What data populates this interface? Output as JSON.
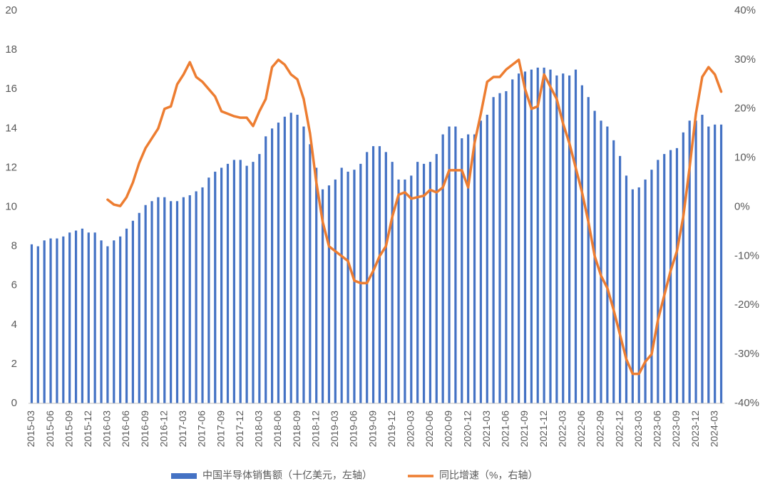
{
  "chart_data": {
    "type": "bar-line",
    "categories": [
      "2015-03",
      null,
      null,
      "2015-06",
      null,
      null,
      "2015-09",
      null,
      null,
      "2015-12",
      null,
      null,
      "2016-03",
      null,
      null,
      "2016-06",
      null,
      null,
      "2016-09",
      null,
      null,
      "2016-12",
      null,
      null,
      "2017-03",
      null,
      null,
      "2017-06",
      null,
      null,
      "2017-09",
      null,
      null,
      "2017-12",
      null,
      null,
      "2018-03",
      null,
      null,
      "2018-06",
      null,
      null,
      "2018-09",
      null,
      null,
      "2018-12",
      null,
      null,
      "2019-03",
      null,
      null,
      "2019-06",
      null,
      null,
      "2019-09",
      null,
      null,
      "2019-12",
      null,
      null,
      "2020-03",
      null,
      null,
      "2020-06",
      null,
      null,
      "2020-09",
      null,
      null,
      "2020-12",
      null,
      null,
      "2021-03",
      null,
      null,
      "2021-06",
      null,
      null,
      "2021-09",
      null,
      null,
      "2021-12",
      null,
      null,
      "2022-03",
      null,
      null,
      "2022-06",
      null,
      null,
      "2022-09",
      null,
      null,
      "2022-12",
      null,
      null,
      "2023-03",
      null,
      null,
      "2023-06",
      null,
      null,
      "2023-09",
      null,
      null,
      "2023-12",
      null,
      null,
      "2024-03",
      null
    ],
    "series": [
      {
        "name": "中国半导体销售额（十亿美元，左轴）",
        "type": "bar",
        "color": "#4472c4",
        "values": [
          8.1,
          8.0,
          8.3,
          8.4,
          8.4,
          8.5,
          8.7,
          8.8,
          8.9,
          8.7,
          8.7,
          8.3,
          8.0,
          8.3,
          8.5,
          8.9,
          9.3,
          9.7,
          10.1,
          10.3,
          10.5,
          10.5,
          10.3,
          10.3,
          10.5,
          10.6,
          10.8,
          11.0,
          11.5,
          11.8,
          12.0,
          12.2,
          12.4,
          12.4,
          12.1,
          12.3,
          12.7,
          13.6,
          14.0,
          14.3,
          14.6,
          14.8,
          14.7,
          14.1,
          13.2,
          12.0,
          10.9,
          11.1,
          11.4,
          12.0,
          11.8,
          11.9,
          12.2,
          12.8,
          13.1,
          13.1,
          12.8,
          12.3,
          11.4,
          11.4,
          11.6,
          12.3,
          12.2,
          12.3,
          12.7,
          13.7,
          14.1,
          14.1,
          13.5,
          13.7,
          13.7,
          14.4,
          14.7,
          15.6,
          15.8,
          15.9,
          16.5,
          16.8,
          16.9,
          17.0,
          17.1,
          17.1,
          17.0,
          16.7,
          16.8,
          16.7,
          17.0,
          16.2,
          15.6,
          14.9,
          14.4,
          14.1,
          13.4,
          12.6,
          11.6,
          10.9,
          11.0,
          11.4,
          11.9,
          12.4,
          12.7,
          12.9,
          13.0,
          13.8,
          14.4,
          14.4,
          14.7,
          14.1,
          14.2,
          14.2
        ]
      },
      {
        "name": "同比增速（%，右轴）",
        "type": "line",
        "axis": "y2",
        "color": "#ed7d31",
        "values": [
          null,
          null,
          null,
          null,
          null,
          null,
          null,
          null,
          null,
          null,
          null,
          null,
          1.5,
          0.5,
          0.2,
          2.0,
          5.0,
          9.0,
          12.0,
          14.0,
          16.0,
          20.0,
          20.5,
          25.0,
          27.0,
          29.5,
          26.5,
          25.5,
          24.0,
          22.5,
          19.5,
          19.0,
          18.5,
          18.2,
          18.2,
          16.5,
          19.5,
          22.0,
          28.5,
          30.0,
          29.0,
          27.0,
          26.0,
          22.0,
          15.0,
          5.0,
          -3.0,
          -8.0,
          -9.0,
          -10.0,
          -11.0,
          -15.0,
          -15.5,
          -15.5,
          -13.0,
          -10.0,
          -8.0,
          -2.0,
          2.5,
          3.0,
          1.7,
          2.0,
          2.3,
          3.5,
          3.0,
          4.0,
          7.5,
          7.5,
          7.5,
          4.0,
          13.0,
          19.0,
          25.5,
          26.5,
          26.5,
          28.0,
          29.0,
          30.0,
          24.0,
          20.0,
          20.5,
          27.0,
          24.5,
          22.0,
          17.0,
          13.0,
          8.0,
          3.0,
          -3.0,
          -10.0,
          -14.0,
          -16.5,
          -21.0,
          -26.0,
          -31.0,
          -34.0,
          -34.0,
          -31.5,
          -30.0,
          -23.0,
          -18.0,
          -13.0,
          -9.0,
          -2.0,
          8.0,
          19.0,
          26.5,
          28.5,
          27.0,
          23.5
        ]
      }
    ],
    "ylim": [
      0,
      20
    ],
    "yticks": [
      0,
      2,
      4,
      6,
      8,
      10,
      12,
      14,
      16,
      18,
      20
    ],
    "y2lim": [
      -40,
      40
    ],
    "y2ticks": [
      {
        "value": -40,
        "label": "-40%"
      },
      {
        "value": -30,
        "label": "-30%"
      },
      {
        "value": -20,
        "label": "-20%"
      },
      {
        "value": -10,
        "label": "-10%"
      },
      {
        "value": 0,
        "label": "0%"
      },
      {
        "value": 10,
        "label": "10%"
      },
      {
        "value": 20,
        "label": "20%"
      },
      {
        "value": 30,
        "label": "30%"
      },
      {
        "value": 40,
        "label": "40%"
      }
    ],
    "grid": false,
    "legend": "bottom"
  }
}
